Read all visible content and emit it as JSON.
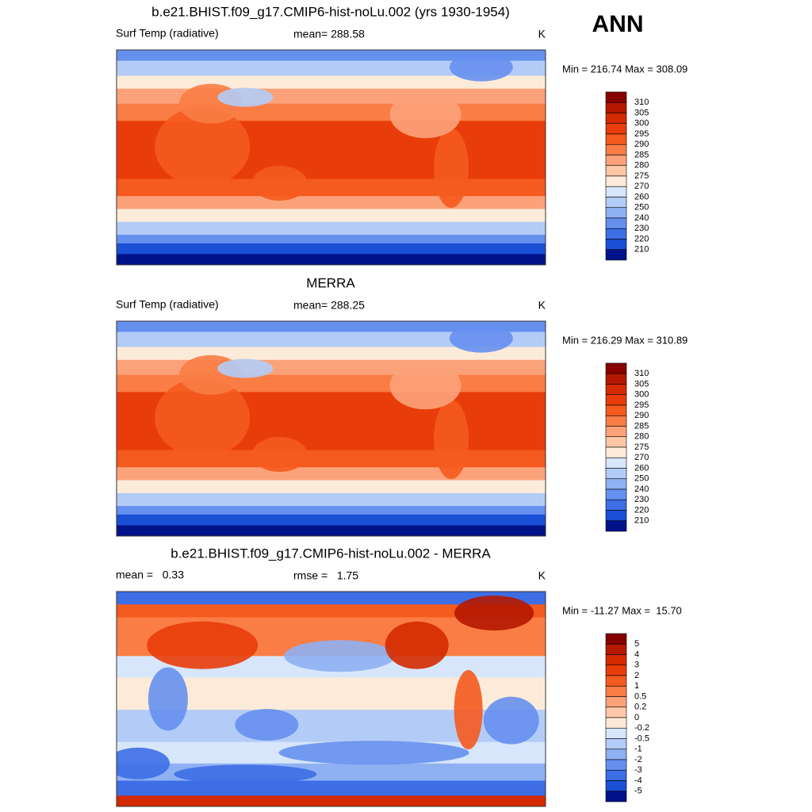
{
  "header": {
    "title": "ANN"
  },
  "panels": [
    {
      "title": "b.e21.BHIST.f09_g17.CMIP6-hist-noLu.002 (yrs 1930-1954)",
      "left_label": "Surf Temp (radiative)",
      "center_label": "mean= 288.58",
      "right_label": "K",
      "minmax": "Min = 216.74 Max = 308.09",
      "colorbar_labels": [
        310,
        305,
        300,
        295,
        290,
        285,
        280,
        275,
        270,
        260,
        250,
        240,
        230,
        220,
        210
      ],
      "colorbar_colors": [
        "#870000",
        "#b51800",
        "#d42a00",
        "#e83d0a",
        "#f55a1e",
        "#fa7d45",
        "#fca27a",
        "#fdc7a8",
        "#fdebd9",
        "#d7e6fa",
        "#b3ccf7",
        "#8fb0f2",
        "#6690ee",
        "#3d6ee6",
        "#1b4fd6",
        "#00128a"
      ]
    },
    {
      "title": "MERRA",
      "left_label": "Surf Temp (radiative)",
      "center_label": "mean= 288.25",
      "right_label": "K",
      "minmax": "Min = 216.29 Max = 310.89",
      "colorbar_labels": [
        310,
        305,
        300,
        295,
        290,
        285,
        280,
        275,
        270,
        260,
        250,
        240,
        230,
        220,
        210
      ],
      "colorbar_colors": [
        "#870000",
        "#b51800",
        "#d42a00",
        "#e83d0a",
        "#f55a1e",
        "#fa7d45",
        "#fca27a",
        "#fdc7a8",
        "#fdebd9",
        "#d7e6fa",
        "#b3ccf7",
        "#8fb0f2",
        "#6690ee",
        "#3d6ee6",
        "#1b4fd6",
        "#00128a"
      ]
    },
    {
      "title": "b.e21.BHIST.f09_g17.CMIP6-hist-noLu.002 - MERRA",
      "left_label": "mean =   0.33",
      "center_label": "rmse =   1.75",
      "right_label": "K",
      "minmax": "Min = -11.27 Max =  15.70",
      "colorbar_labels": [
        5,
        4,
        3,
        2,
        1,
        0.5,
        0.2,
        0,
        -0.2,
        -0.5,
        -1,
        -2,
        -3,
        -4,
        -5
      ],
      "colorbar_colors": [
        "#870000",
        "#b51800",
        "#d42a00",
        "#e83d0a",
        "#f55a1e",
        "#fa7d45",
        "#fca27a",
        "#fdc7a8",
        "#fdebd9",
        "#d7e6fa",
        "#b3ccf7",
        "#8fb0f2",
        "#6690ee",
        "#3d6ee6",
        "#1b4fd6",
        "#00128a"
      ]
    }
  ]
}
